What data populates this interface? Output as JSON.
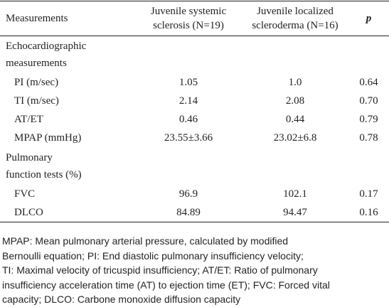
{
  "table": {
    "header": [
      [
        "Measurements"
      ],
      [
        "Juvenile systemic",
        "sclerosis (N=19)"
      ],
      [
        "Juvenile localized",
        "scleroderma (N=16)"
      ],
      [
        "p"
      ]
    ],
    "rows": [
      {
        "section": [
          "Echocardiographic",
          "measurements"
        ]
      },
      {
        "cells": [
          "PI (m/sec)",
          "1.05",
          "1.0",
          "0.64"
        ]
      },
      {
        "cells": [
          "TI (m/sec)",
          "2.14",
          "2.08",
          "0.70"
        ]
      },
      {
        "cells": [
          "AT/ET",
          "0.46",
          "0.44",
          "0.79"
        ]
      },
      {
        "cells": [
          "MPAP (mmHg)",
          "23.55±3.66",
          "23.02±6.8",
          "0.78"
        ]
      },
      {
        "section": [
          "Pulmonary",
          "function tests (%)"
        ]
      },
      {
        "cells": [
          "FVC",
          "96.9",
          "102.1",
          "0.17"
        ]
      },
      {
        "cells": [
          "DLCO",
          "84.89",
          "94.47",
          "0.16"
        ]
      }
    ]
  },
  "footnote": [
    "MPAP: Mean pulmonary arterial pressure, calculated by modified",
    "Bernoulli equation; PI: End diastolic pulmonary insufficiency velocity;",
    "TI: Maximal velocity of tricuspid insufficiency; AT/ET: Ratio of pulmonary",
    "insufficiency acceleration time (AT) to ejection time (ET); FVC: Forced vital",
    "capacity; DLCO: Carbone monoxide diffusion capacity"
  ]
}
